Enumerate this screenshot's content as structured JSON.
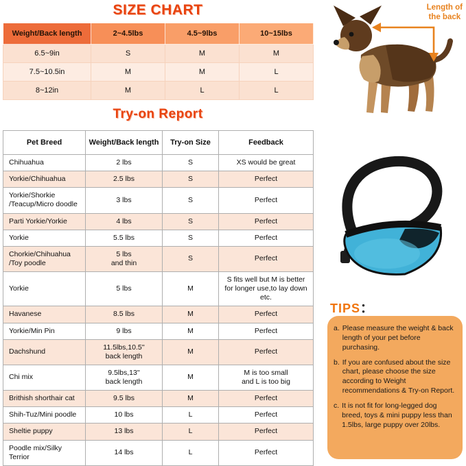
{
  "size_chart": {
    "title": "SIZE CHART",
    "headers": [
      "Weight/Back length",
      "2~4.5lbs",
      "4.5~9lbs",
      "10~15lbs"
    ],
    "rows": [
      [
        "6.5~9in",
        "S",
        "M",
        "M"
      ],
      [
        "7.5~10.5in",
        "M",
        "M",
        "L"
      ],
      [
        "8~12in",
        "M",
        "L",
        "L"
      ]
    ]
  },
  "dog_figure": {
    "annotation": "Length of\nthe back"
  },
  "tryon": {
    "title": "Try-on Report",
    "headers": [
      "Pet Breed",
      "Weight/Back length",
      "Try-on Size",
      "Feedback"
    ],
    "rows": [
      [
        "Chihuahua",
        "2 lbs",
        "S",
        "XS would be great"
      ],
      [
        "Yorkie/Chihuahua",
        "2.5 lbs",
        "S",
        "Perfect"
      ],
      [
        "Yorkie/Shorkie\n/Teacup/Micro doodle",
        "3 lbs",
        "S",
        "Perfect"
      ],
      [
        "Parti Yorkie/Yorkie",
        "4 lbs",
        "S",
        "Perfect"
      ],
      [
        "Yorkie",
        "5.5 lbs",
        "S",
        "Perfect"
      ],
      [
        "Chorkie/Chihuahua\n/Toy poodle",
        "5 lbs\nand thin",
        "S",
        "Perfect"
      ],
      [
        "Yorkie",
        "5 lbs",
        "M",
        "S fits well but M is better\nfor longer use,to lay down etc."
      ],
      [
        "Havanese",
        "8.5 lbs",
        "M",
        "Perfect"
      ],
      [
        "Yorkie/Min Pin",
        "9 lbs",
        "M",
        "Perfect"
      ],
      [
        "Dachshund",
        "11.5lbs,10.5''\nback length",
        "M",
        "Perfect"
      ],
      [
        "Chi mix",
        "9.5lbs,13''\nback length",
        "M",
        "M is too small\nand L is too big"
      ],
      [
        "Brithish shorthair cat",
        "9.5 lbs",
        "M",
        "Perfect"
      ],
      [
        "Shih-Tuz/Mini poodle",
        "10 lbs",
        "L",
        "Perfect"
      ],
      [
        "Sheltie puppy",
        "13 lbs",
        "L",
        "Perfect"
      ],
      [
        "Poodle mix/Silky\nTerrior",
        "14 lbs",
        "L",
        "Perfect"
      ]
    ]
  },
  "tips": {
    "title": "TIPS",
    "colon": "：",
    "items": [
      {
        "marker": "a.",
        "text": "Please measure the weight & back length of your pet before purchasing."
      },
      {
        "marker": "b.",
        "text": "If you are confused about the size chart, please choose the size according to Weight recommendations & Try-on Report."
      },
      {
        "marker": "c.",
        "text": "It is not fit for long-legged dog breed, toys & mini puppy less than 1.5lbs, large puppy over 20lbs."
      }
    ]
  },
  "colors": {
    "accent_red": "#e8430f",
    "header_orange_dark": "#ed6c3a",
    "header_orange_light": "#fbaa76",
    "row_pink": "#fbe5d8",
    "tips_box_orange": "#f3a95e",
    "annotation_orange": "#e8821e",
    "bag_blue": "#41b2d8"
  }
}
